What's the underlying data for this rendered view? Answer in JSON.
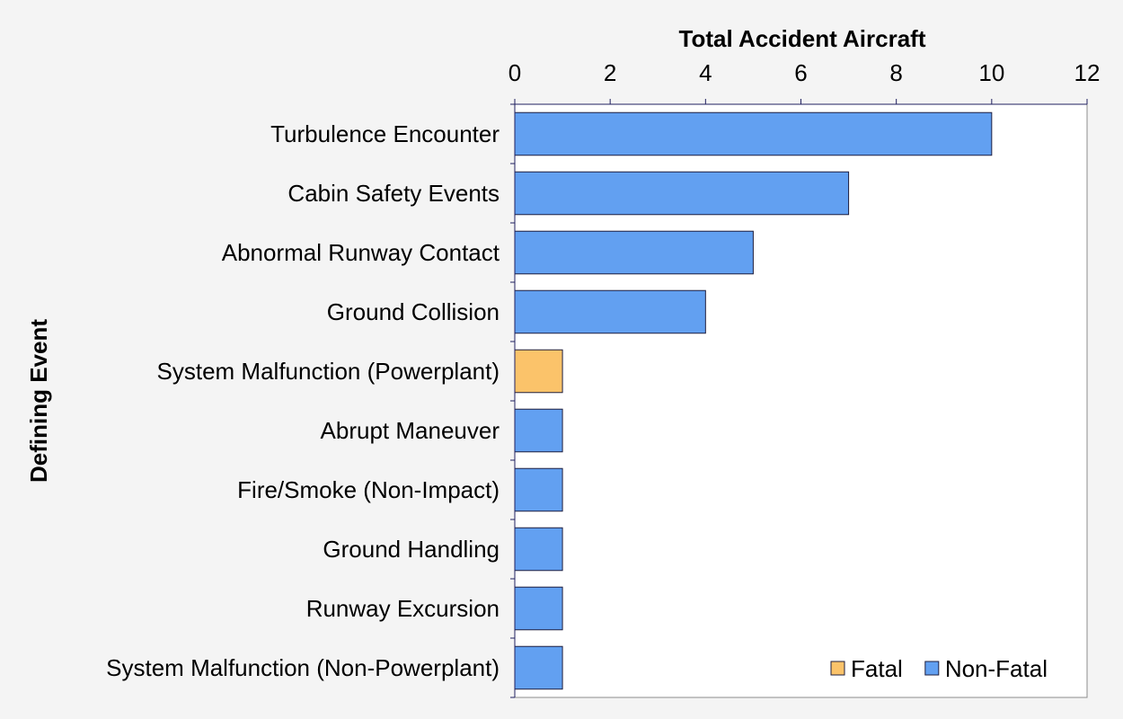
{
  "chart_data": {
    "type": "bar",
    "orientation": "horizontal",
    "xlabel": "Total Accident Aircraft",
    "ylabel": "Defining Event",
    "xlim": [
      0,
      12
    ],
    "xticks": [
      0,
      2,
      4,
      6,
      8,
      10,
      12
    ],
    "x_axis_position": "top",
    "grid": false,
    "legend_position": "bottom-right",
    "categories": [
      "Turbulence Encounter",
      "Cabin Safety Events",
      "Abnormal Runway Contact",
      "Ground Collision",
      "System Malfunction (Powerplant)",
      "Abrupt Maneuver",
      "Fire/Smoke (Non-Impact)",
      "Ground Handling",
      "Runway Excursion",
      "System Malfunction (Non-Powerplant)"
    ],
    "series": [
      {
        "name": "Fatal",
        "color": "#fbc36a",
        "values": [
          0,
          0,
          0,
          0,
          1,
          0,
          0,
          0,
          0,
          0
        ]
      },
      {
        "name": "Non-Fatal",
        "color": "#62a0f1",
        "values": [
          10,
          7,
          5,
          4,
          0,
          1,
          1,
          1,
          1,
          1
        ]
      }
    ]
  }
}
